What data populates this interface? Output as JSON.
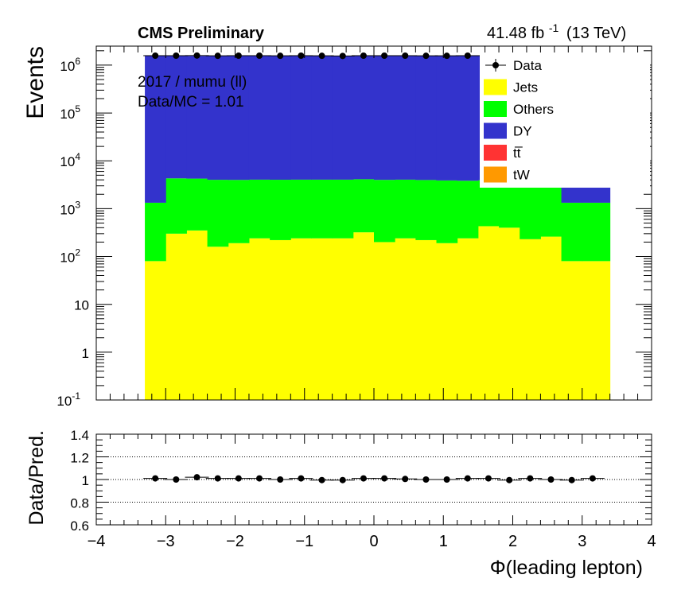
{
  "header": {
    "experiment": "CMS Preliminary",
    "lumi_value": "41.48 fb",
    "lumi_exp": "-1",
    "lumi_energy": "(13 TeV)"
  },
  "annotations": {
    "line1": "2017 / mumu (ll)",
    "line2": "Data/MC = 1.01"
  },
  "colors": {
    "Jets": "#ffff00",
    "Others": "#00ff00",
    "DY": "#3333cc",
    "ttbar": "#ff3333",
    "tW": "#ff9900",
    "data": "#000000"
  },
  "chart_data": [
    {
      "type": "bar",
      "stacked": true,
      "log_y": true,
      "ylabel": "Events",
      "xlim": [
        -4,
        4
      ],
      "ylim": [
        0.1,
        2500000
      ],
      "y_ticks": [
        {
          "value": 0.1,
          "base": "10",
          "exp": "-1"
        },
        {
          "value": 1,
          "label": "1"
        },
        {
          "value": 10,
          "label": "10"
        },
        {
          "value": 100,
          "base": "10",
          "exp": "2"
        },
        {
          "value": 1000,
          "base": "10",
          "exp": "3"
        },
        {
          "value": 10000,
          "base": "10",
          "exp": "4"
        },
        {
          "value": 100000,
          "base": "10",
          "exp": "5"
        },
        {
          "value": 1000000,
          "base": "10",
          "exp": "6"
        }
      ],
      "x_edges": [
        -3.3,
        -3.0,
        -2.7,
        -2.4,
        -2.1,
        -1.8,
        -1.5,
        -1.2,
        -0.9,
        -0.6,
        -0.3,
        0.0,
        0.3,
        0.6,
        0.9,
        1.2,
        1.5,
        1.8,
        2.1,
        2.4,
        2.7,
        3.0,
        3.3
      ],
      "x_fill_range": [
        -3.3,
        3.4
      ],
      "series": [
        {
          "name": "Jets",
          "color_key": "Jets",
          "values": [
            80,
            300,
            350,
            160,
            190,
            240,
            220,
            240,
            240,
            240,
            320,
            200,
            240,
            220,
            190,
            240,
            430,
            400,
            230,
            260,
            80,
            80
          ]
        },
        {
          "name": "Others",
          "color_key": "Others",
          "values": [
            1250,
            4000,
            3900,
            3850,
            3800,
            3800,
            3800,
            3800,
            3800,
            3800,
            3800,
            3800,
            3800,
            3750,
            3700,
            3600,
            3500,
            3400,
            3300,
            3200,
            1250,
            1250
          ]
        },
        {
          "name": "DY",
          "color_key": "DY",
          "values": [
            1550000,
            1550000,
            1550000,
            1550000,
            1550000,
            1550000,
            1550000,
            1550000,
            1550000,
            1550000,
            1550000,
            1550000,
            1550000,
            1550000,
            1550000,
            1550000,
            1550000,
            1550000,
            1550000,
            1550000,
            2900,
            2900
          ]
        },
        {
          "name": "tt̅",
          "color_key": "ttbar",
          "values": []
        },
        {
          "name": "tW",
          "color_key": "tW",
          "values": []
        }
      ],
      "data_points": {
        "name": "Data",
        "x": [
          -3.15,
          -2.85,
          -2.55,
          -2.25,
          -1.95,
          -1.65,
          -1.35,
          -1.05,
          -0.75,
          -0.45,
          -0.15,
          0.15,
          0.45,
          0.75,
          1.05,
          1.35,
          1.65,
          1.95,
          2.25,
          2.55,
          2.85,
          3.15
        ],
        "y": [
          1580000,
          1580000,
          1590000,
          1570000,
          1580000,
          1580000,
          1570000,
          1580000,
          1570000,
          1560000,
          1580000,
          1580000,
          1580000,
          1570000,
          1570000,
          1580000,
          1580000,
          1560000,
          1570000,
          1570000,
          1560000,
          1580000
        ]
      },
      "legend": {
        "placement": "top-right",
        "entries": [
          {
            "label": "Data",
            "marker": "point",
            "color_key": "data"
          },
          {
            "label": "Jets",
            "marker": "box",
            "color_key": "Jets"
          },
          {
            "label": "Others",
            "marker": "box",
            "color_key": "Others"
          },
          {
            "label": "DY",
            "marker": "box",
            "color_key": "DY"
          },
          {
            "label": "tt̅",
            "marker": "box",
            "color_key": "ttbar"
          },
          {
            "label": "tW",
            "marker": "box",
            "color_key": "tW"
          }
        ]
      }
    },
    {
      "type": "scatter",
      "ylabel": "Data/Pred.",
      "xlabel": "Φ(leading lepton)",
      "xlim": [
        -4,
        4
      ],
      "ylim": [
        0.6,
        1.4
      ],
      "x_ticks": [
        "−4",
        "−3",
        "−2",
        "−1",
        "0",
        "1",
        "2",
        "3",
        "4"
      ],
      "x_tick_values": [
        -4,
        -3,
        -2,
        -1,
        0,
        1,
        2,
        3,
        4
      ],
      "y_ticks": [
        "0.6",
        "0.8",
        "1",
        "1.2",
        "1.4"
      ],
      "y_tick_values": [
        0.6,
        0.8,
        1.0,
        1.2,
        1.4
      ],
      "reference_lines": [
        0.8,
        1.0,
        1.2
      ],
      "x": [
        -3.15,
        -2.85,
        -2.55,
        -2.25,
        -1.95,
        -1.65,
        -1.35,
        -1.05,
        -0.75,
        -0.45,
        -0.15,
        0.15,
        0.45,
        0.75,
        1.05,
        1.35,
        1.65,
        1.95,
        2.25,
        2.55,
        2.85,
        3.15
      ],
      "y": [
        1.01,
        1.0,
        1.02,
        1.01,
        1.01,
        1.01,
        1.0,
        1.01,
        0.995,
        0.995,
        1.01,
        1.01,
        1.005,
        1.0,
        1.0,
        1.01,
        1.01,
        0.995,
        1.01,
        1.0,
        0.995,
        1.01
      ]
    }
  ]
}
